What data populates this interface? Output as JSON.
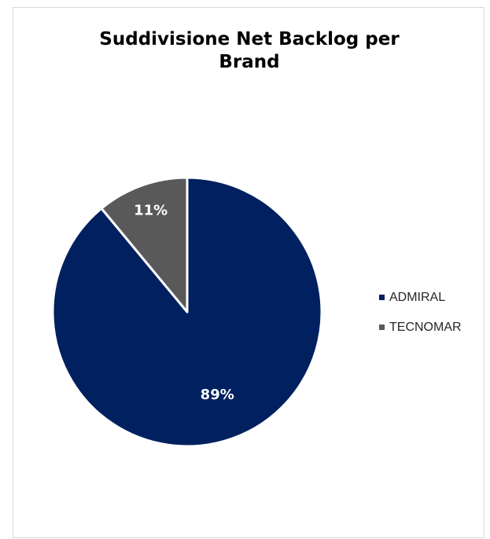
{
  "chart_data": {
    "type": "pie",
    "title_line1": "Suddivisione Net Backlog per",
    "title_line2": "Brand",
    "slices": [
      {
        "label": "ADMIRAL",
        "value": 89,
        "display": "89%",
        "color": "#002060"
      },
      {
        "label": "TECNOMAR",
        "value": 11,
        "display": "11%",
        "color": "#595959"
      }
    ],
    "legend_position": "right",
    "start_angle": "12 o'clock, clockwise"
  },
  "colors": {
    "slice_border": "#ffffff",
    "frame_border": "#d9d9d9"
  }
}
